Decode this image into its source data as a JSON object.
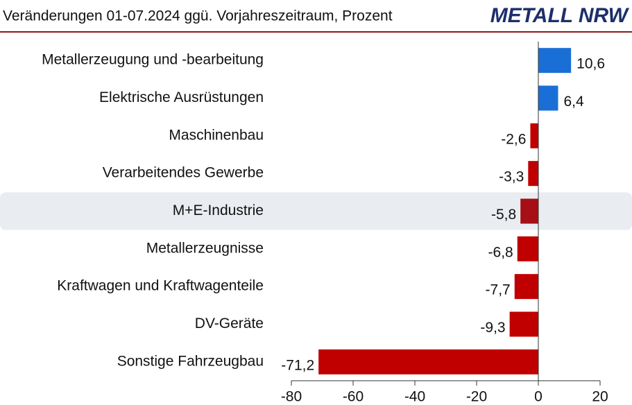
{
  "chart_data": {
    "type": "hbar",
    "title": "Veränderungen 01-07.2024 ggü. Vorjahreszeitraum, Prozent",
    "logo": "METALL NRW",
    "categories": [
      "Metallerzeugung und -bearbeitung",
      "Elektrische Ausrüstungen",
      "Maschinenbau",
      "Verarbeitendes Gewerbe",
      "M+E-Industrie",
      "Metallerzeugnisse",
      "Kraftwagen und Kraftwagenteile",
      "DV-Geräte",
      "Sonstige Fahrzeugbau"
    ],
    "values": [
      10.6,
      6.4,
      -2.6,
      -3.3,
      -5.8,
      -6.8,
      -7.7,
      -9.3,
      -71.2
    ],
    "value_labels": [
      "10,6",
      "6,4",
      "-2,6",
      "-3,3",
      "-5,8",
      "-6,8",
      "-7,7",
      "-9,3",
      "-71,2"
    ],
    "colors": [
      "#1a6fd6",
      "#1a6fd6",
      "#c00000",
      "#c00000",
      "#a50f15",
      "#c00000",
      "#c00000",
      "#c00000",
      "#c00000"
    ],
    "highlight": "M+E-Industrie",
    "xlim": [
      -80,
      20
    ],
    "xticks": [
      -80,
      -60,
      -40,
      -20,
      0,
      20
    ]
  }
}
